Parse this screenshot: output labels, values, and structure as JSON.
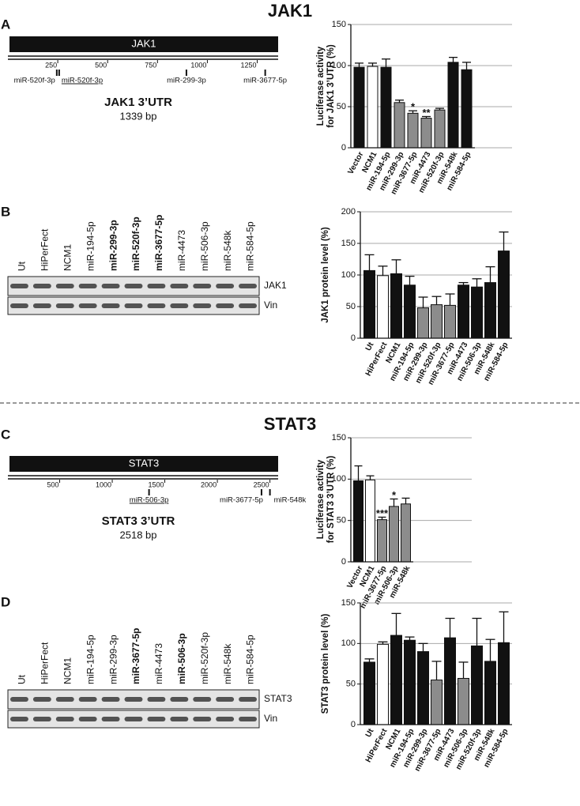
{
  "headings": [
    "JAK1",
    "STAT3"
  ],
  "panel_letters": [
    "A",
    "B",
    "C",
    "D"
  ],
  "gene_maps": [
    {
      "name": "JAK1",
      "title": "JAK1 3’UTR",
      "length": "1339 bp",
      "range": [
        0,
        1339
      ],
      "scale_ticks": [
        250,
        500,
        750,
        1000,
        1250
      ],
      "sites": [
        {
          "name": "miR-520f-3p",
          "position": 245,
          "underlined": false
        },
        {
          "name": "miR-520f-3p",
          "position": 257,
          "underlined": true
        },
        {
          "name": "miR-299-3p",
          "position": 895,
          "underlined": false
        },
        {
          "name": "miR-3677-5p",
          "position": 1290,
          "underlined": false
        }
      ]
    },
    {
      "name": "STAT3",
      "title": "STAT3 3’UTR",
      "length": "2518 bp",
      "range": [
        0,
        2518
      ],
      "scale_ticks": [
        500,
        1000,
        1500,
        2000,
        2500
      ],
      "sites": [
        {
          "name": "miR-506-3p",
          "position": 1350,
          "underlined": true
        },
        {
          "name": "miR-3677-5p",
          "position": 2420,
          "underlined": false
        },
        {
          "name": "miR-548k",
          "position": 2500,
          "underlined": false
        }
      ]
    }
  ],
  "blots": [
    {
      "lanes": [
        "Ut",
        "HiPerFect",
        "NCM1",
        "miR-194-5p",
        "miR-299-3p",
        "miR-520f-3p",
        "miR-3677-5p",
        "miR-4473",
        "miR-506-3p",
        "miR-548k",
        "miR-584-5p"
      ],
      "bold": [
        false,
        false,
        false,
        false,
        true,
        true,
        true,
        false,
        false,
        false,
        false
      ],
      "rows": [
        "JAK1",
        "Vin"
      ]
    },
    {
      "lanes": [
        "Ut",
        "HiPerFect",
        "NCM1",
        "miR-194-5p",
        "miR-299-3p",
        "miR-3677-5p",
        "miR-4473",
        "miR-506-3p",
        "miR-520f-3p",
        "miR-548k",
        "miR-584-5p"
      ],
      "bold": [
        false,
        false,
        false,
        false,
        false,
        true,
        false,
        true,
        false,
        false,
        false
      ],
      "rows": [
        "STAT3",
        "Vin"
      ]
    }
  ],
  "chart_data": [
    {
      "type": "bar",
      "ylabel": [
        "Luciferase activity",
        "for JAK1 3’UTR (%)"
      ],
      "categories": [
        "Vector",
        "NCM1",
        "miR-194-5p",
        "miR-299-3p",
        "miR-3677-5p",
        "miR-4473",
        "miR-520f-3p",
        "miR-548k",
        "miR-584-5p"
      ],
      "values": [
        98,
        99,
        98,
        55,
        42,
        36,
        46,
        104,
        95
      ],
      "errors": [
        5,
        4,
        10,
        3,
        3,
        2,
        2,
        6,
        9
      ],
      "significance": [
        null,
        null,
        null,
        null,
        "*",
        "**",
        null,
        null,
        null
      ],
      "colors": [
        "#111111",
        "#ffffff",
        "#111111",
        "#8c8c8c",
        "#8c8c8c",
        "#8c8c8c",
        "#8c8c8c",
        "#111111",
        "#111111"
      ],
      "ylim": [
        0,
        150
      ],
      "yticks": [
        0,
        50,
        100,
        150
      ],
      "grid": true
    },
    {
      "type": "bar",
      "ylabel": [
        "JAK1 protein level (%)"
      ],
      "categories": [
        "Ut",
        "HiPerFect",
        "NCM1",
        "miR-194-5p",
        "miR-299-3p",
        "miR-520f-3p",
        "miR-3677-5p",
        "miR-4473",
        "miR-506-3p",
        "miR-548k",
        "miR-584-5p"
      ],
      "values": [
        107,
        99,
        102,
        84,
        48,
        53,
        52,
        84,
        81,
        88,
        138
      ],
      "errors": [
        25,
        15,
        22,
        14,
        17,
        13,
        18,
        4,
        13,
        25,
        30
      ],
      "significance": [
        null,
        null,
        null,
        null,
        null,
        null,
        null,
        null,
        null,
        null,
        null
      ],
      "colors": [
        "#111111",
        "#ffffff",
        "#111111",
        "#111111",
        "#8c8c8c",
        "#8c8c8c",
        "#8c8c8c",
        "#111111",
        "#111111",
        "#111111",
        "#111111"
      ],
      "ylim": [
        0,
        200
      ],
      "yticks": [
        0,
        50,
        100,
        150,
        200
      ],
      "grid": true
    },
    {
      "type": "bar",
      "ylabel": [
        "Luciferase activity",
        "for STAT3 3’UTR (%)"
      ],
      "categories": [
        "Vector",
        "NCM1",
        "miR-3677-5p",
        "miR-506-3p",
        "miR-548k"
      ],
      "values": [
        98,
        99,
        51,
        67,
        70
      ],
      "errors": [
        18,
        5,
        3,
        9,
        7
      ],
      "significance": [
        null,
        null,
        "***",
        "*",
        null
      ],
      "colors": [
        "#111111",
        "#ffffff",
        "#8c8c8c",
        "#8c8c8c",
        "#8c8c8c"
      ],
      "ylim": [
        0,
        150
      ],
      "yticks": [
        0,
        50,
        100,
        150
      ],
      "grid": true
    },
    {
      "type": "bar",
      "ylabel": [
        "STAT3 protein level (%)"
      ],
      "categories": [
        "Ut",
        "HiPerFect",
        "NCM1",
        "miR-194-5p",
        "miR-299-3p",
        "miR-3677-5p",
        "miR-4473",
        "miR-506-3p",
        "miR-520f-3p",
        "miR-548k",
        "miR-584-5p"
      ],
      "values": [
        77,
        99,
        110,
        104,
        90,
        55,
        107,
        57,
        97,
        78,
        101
      ],
      "errors": [
        4,
        3,
        27,
        4,
        10,
        23,
        24,
        20,
        34,
        27,
        38
      ],
      "significance": [
        null,
        null,
        null,
        null,
        null,
        null,
        null,
        null,
        null,
        null,
        null
      ],
      "colors": [
        "#111111",
        "#ffffff",
        "#111111",
        "#111111",
        "#111111",
        "#8c8c8c",
        "#111111",
        "#8c8c8c",
        "#111111",
        "#111111",
        "#111111"
      ],
      "ylim": [
        0,
        150
      ],
      "yticks": [
        0,
        50,
        100,
        150
      ],
      "grid": true
    }
  ]
}
